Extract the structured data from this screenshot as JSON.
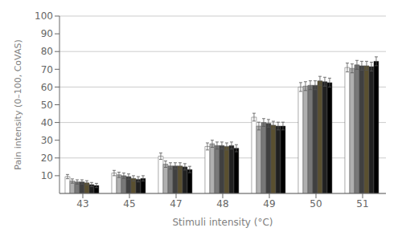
{
  "chart_data": {
    "type": "bar",
    "xlabel": "Stimuli intensity (°C)",
    "ylabel": "Pain intensity (0–100, CoVAS)",
    "categories": [
      43,
      45,
      47,
      48,
      49,
      50,
      51
    ],
    "series": [
      {
        "color": "#ffffff",
        "values": [
          9.5,
          11.5,
          21.0,
          26.5,
          43.0,
          60.0,
          71.0
        ],
        "errors": [
          1.2,
          1.5,
          1.8,
          2.0,
          2.2,
          2.5,
          2.5
        ]
      },
      {
        "color": "#b0b0b0",
        "values": [
          7.0,
          10.5,
          16.5,
          28.0,
          38.0,
          60.5,
          70.5
        ],
        "errors": [
          1.2,
          1.5,
          1.8,
          2.0,
          2.2,
          2.5,
          2.5
        ]
      },
      {
        "color": "#787878",
        "values": [
          6.5,
          10.0,
          15.5,
          27.0,
          40.0,
          61.0,
          72.5
        ],
        "errors": [
          1.2,
          1.5,
          1.8,
          2.0,
          2.2,
          2.5,
          2.5
        ]
      },
      {
        "color": "#404040",
        "values": [
          6.5,
          9.5,
          15.5,
          27.0,
          39.5,
          61.0,
          72.0
        ],
        "errors": [
          1.2,
          1.5,
          1.8,
          2.0,
          2.2,
          2.5,
          2.5
        ]
      },
      {
        "color": "#5a5030",
        "values": [
          6.0,
          8.5,
          15.5,
          26.5,
          38.5,
          63.5,
          72.0
        ],
        "errors": [
          1.2,
          1.5,
          1.8,
          2.0,
          2.2,
          2.5,
          2.5
        ]
      },
      {
        "color": "#202020",
        "values": [
          5.0,
          8.0,
          15.0,
          27.0,
          38.0,
          63.0,
          71.5
        ],
        "errors": [
          1.2,
          1.5,
          1.8,
          2.0,
          2.2,
          2.5,
          2.5
        ]
      },
      {
        "color": "#000000",
        "values": [
          4.5,
          8.5,
          13.5,
          25.5,
          38.0,
          62.5,
          74.5
        ],
        "errors": [
          1.2,
          1.5,
          1.8,
          2.0,
          2.2,
          2.5,
          2.5
        ]
      }
    ],
    "ylim": [
      0,
      100
    ],
    "yticks": [
      10,
      20,
      30,
      40,
      50,
      60,
      70,
      80,
      90,
      100
    ],
    "grid": true
  }
}
